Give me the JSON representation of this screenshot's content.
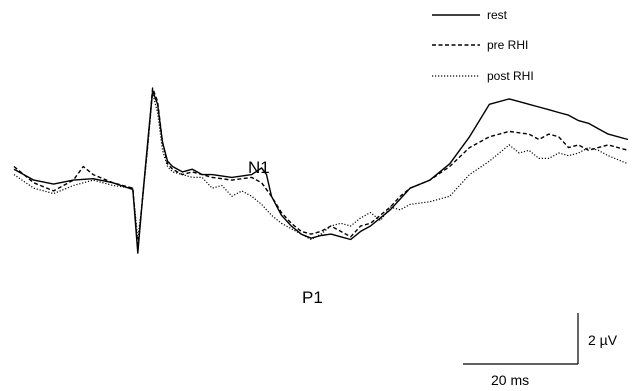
{
  "chart_data": {
    "type": "line",
    "title": "",
    "xlabel": "",
    "ylabel": "",
    "units": {
      "x": "ms",
      "y": "µV"
    },
    "xlim": [
      0,
      124
    ],
    "ylim": [
      -3.3,
      3.8
    ],
    "grid": false,
    "legend_position": "top-right",
    "legend": [
      {
        "label": "rest",
        "style": "solid"
      },
      {
        "label": "pre RHI",
        "style": "dashed"
      },
      {
        "label": "post RHI",
        "style": "dotted"
      }
    ],
    "annotations": [
      {
        "text": "N1",
        "x": 49,
        "y": 0.7
      },
      {
        "text": "P1",
        "x": 60,
        "y": -2.4
      }
    ],
    "scale_bar": {
      "x_text": "20 ms",
      "x_value": 20,
      "y_text": "2 µV",
      "y_value": 2
    },
    "series": [
      {
        "name": "rest",
        "style": "solid",
        "x": [
          0,
          4,
          8,
          12,
          16,
          20,
          24,
          25,
          26,
          27,
          28,
          29,
          30,
          31,
          32,
          34,
          36,
          38,
          40,
          44,
          48,
          50,
          51,
          52,
          54,
          56,
          58,
          60,
          62,
          64,
          66,
          68,
          70,
          72,
          74,
          76,
          78,
          80,
          84,
          88,
          92,
          96,
          100,
          102,
          104,
          106,
          108,
          110,
          112,
          114,
          116,
          118,
          120,
          124
        ],
        "y": [
          0.5,
          0.1,
          -0.05,
          0.1,
          0.15,
          0.0,
          -0.25,
          -2.6,
          -0.5,
          1.5,
          3.4,
          2.9,
          1.5,
          0.8,
          0.6,
          0.4,
          0.5,
          0.3,
          0.3,
          0.2,
          0.3,
          0.55,
          0.3,
          -0.5,
          -1.2,
          -1.6,
          -1.9,
          -2.05,
          -1.95,
          -1.9,
          -2.0,
          -2.1,
          -1.8,
          -1.6,
          -1.3,
          -1.0,
          -0.6,
          -0.2,
          0.1,
          0.7,
          1.7,
          2.9,
          3.1,
          3.0,
          2.9,
          2.8,
          2.7,
          2.6,
          2.5,
          2.3,
          2.2,
          2.0,
          1.8,
          1.6
        ]
      },
      {
        "name": "pre RHI",
        "style": "dashed",
        "x": [
          0,
          4,
          8,
          12,
          14,
          16,
          20,
          24,
          25,
          26,
          27,
          28,
          29,
          30,
          31,
          32,
          34,
          36,
          38,
          40,
          44,
          48,
          50,
          52,
          54,
          56,
          58,
          60,
          62,
          64,
          66,
          68,
          70,
          72,
          74,
          76,
          78,
          80,
          84,
          88,
          92,
          96,
          100,
          104,
          106,
          108,
          110,
          112,
          114,
          116,
          118,
          120,
          124
        ],
        "y": [
          0.6,
          0.0,
          -0.3,
          0.1,
          0.6,
          0.3,
          0.0,
          -0.2,
          -2.4,
          -0.5,
          1.4,
          3.5,
          3.0,
          1.5,
          0.7,
          0.5,
          0.3,
          0.4,
          0.3,
          0.2,
          0.1,
          0.2,
          0.0,
          -0.5,
          -1.1,
          -1.5,
          -1.8,
          -1.9,
          -1.8,
          -1.6,
          -1.8,
          -2.0,
          -1.6,
          -1.5,
          -1.2,
          -0.9,
          -0.5,
          -0.2,
          0.1,
          0.6,
          1.3,
          1.7,
          1.9,
          1.8,
          1.6,
          1.8,
          1.7,
          1.3,
          1.4,
          1.2,
          1.3,
          1.4,
          1.2
        ]
      },
      {
        "name": "post RHI",
        "style": "dotted",
        "x": [
          0,
          4,
          8,
          12,
          16,
          20,
          24,
          25,
          26,
          27,
          28,
          29,
          30,
          31,
          32,
          34,
          36,
          38,
          40,
          42,
          44,
          46,
          48,
          50,
          52,
          54,
          56,
          58,
          60,
          62,
          64,
          66,
          68,
          70,
          72,
          74,
          76,
          78,
          80,
          84,
          88,
          92,
          96,
          100,
          102,
          104,
          106,
          108,
          110,
          112,
          114,
          116,
          118,
          120,
          124
        ],
        "y": [
          0.3,
          -0.2,
          -0.4,
          -0.1,
          0.1,
          -0.1,
          -0.2,
          -2.1,
          -0.6,
          1.3,
          3.3,
          2.6,
          1.2,
          0.6,
          0.4,
          0.3,
          0.2,
          0.2,
          -0.2,
          -0.1,
          -0.5,
          -0.3,
          -0.5,
          -0.8,
          -1.2,
          -1.5,
          -1.7,
          -1.9,
          -2.1,
          -1.9,
          -1.6,
          -1.5,
          -1.6,
          -1.3,
          -1.1,
          -1.4,
          -0.9,
          -1.0,
          -0.8,
          -0.7,
          -0.5,
          0.3,
          0.8,
          1.4,
          1.1,
          1.2,
          0.9,
          0.9,
          1.1,
          1.0,
          1.1,
          1.3,
          1.2,
          1.0,
          0.7
        ]
      }
    ]
  }
}
